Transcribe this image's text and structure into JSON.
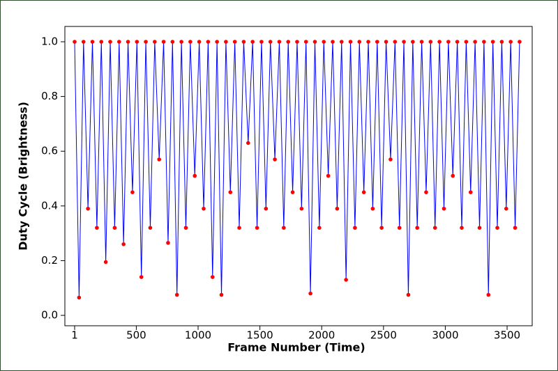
{
  "chart_data": {
    "type": "line",
    "xlabel": "Frame Number (Time)",
    "ylabel": "Duty Cycle (Brightness)",
    "x": [
      1,
      37,
      73,
      109,
      145,
      181,
      217,
      253,
      289,
      325,
      361,
      397,
      433,
      469,
      505,
      541,
      577,
      613,
      649,
      685,
      721,
      757,
      793,
      829,
      865,
      901,
      937,
      973,
      1009,
      1045,
      1081,
      1117,
      1153,
      1189,
      1225,
      1261,
      1297,
      1333,
      1369,
      1405,
      1441,
      1477,
      1513,
      1549,
      1585,
      1621,
      1657,
      1693,
      1729,
      1765,
      1801,
      1837,
      1873,
      1909,
      1945,
      1981,
      2017,
      2053,
      2089,
      2125,
      2161,
      2197,
      2233,
      2269,
      2305,
      2341,
      2377,
      2413,
      2449,
      2485,
      2521,
      2557,
      2593,
      2629,
      2665,
      2701,
      2737,
      2773,
      2809,
      2845,
      2881,
      2917,
      2953,
      2989,
      3025,
      3061,
      3097,
      3133,
      3169,
      3205,
      3241,
      3277,
      3313,
      3349,
      3385,
      3421,
      3457,
      3493,
      3529,
      3565,
      3601
    ],
    "series": [
      {
        "color": "#0000ff",
        "marker_color": "#ff0000",
        "values": [
          1,
          0.065,
          1,
          0.39,
          1,
          0.32,
          1,
          0.195,
          1,
          0.32,
          1,
          0.26,
          1,
          0.45,
          1,
          0.14,
          1,
          0.32,
          1,
          0.57,
          1,
          0.265,
          1,
          0.075,
          1,
          0.32,
          1,
          0.51,
          1,
          0.39,
          1,
          0.14,
          1,
          0.075,
          1,
          0.45,
          1,
          0.32,
          1,
          0.63,
          1,
          0.32,
          1,
          0.39,
          1,
          0.57,
          1,
          0.32,
          1,
          0.45,
          1,
          0.39,
          1,
          0.08,
          1,
          0.32,
          1,
          0.51,
          1,
          0.39,
          1,
          0.13,
          1,
          0.32,
          1,
          0.45,
          1,
          0.39,
          1,
          0.32,
          1,
          0.57,
          1,
          0.32,
          1,
          0.075,
          1,
          0.32,
          1,
          0.45,
          1,
          0.32,
          1,
          0.39,
          1,
          0.51,
          1,
          0.32,
          1,
          0.45,
          1,
          0.32,
          1,
          0.075,
          1,
          0.32,
          1,
          0.39,
          1,
          0.32,
          1
        ]
      }
    ],
    "xlim": [
      -78,
      3703
    ],
    "xticks": [
      1,
      500,
      1000,
      1500,
      2000,
      2500,
      3000,
      3500
    ],
    "ylim": [
      -0.038,
      1.056
    ],
    "yticks": [
      {
        "value": 0,
        "label": "0.0"
      },
      0.2,
      0.4,
      0.6,
      0.8,
      {
        "value": 1,
        "label": "1.0"
      }
    ]
  }
}
